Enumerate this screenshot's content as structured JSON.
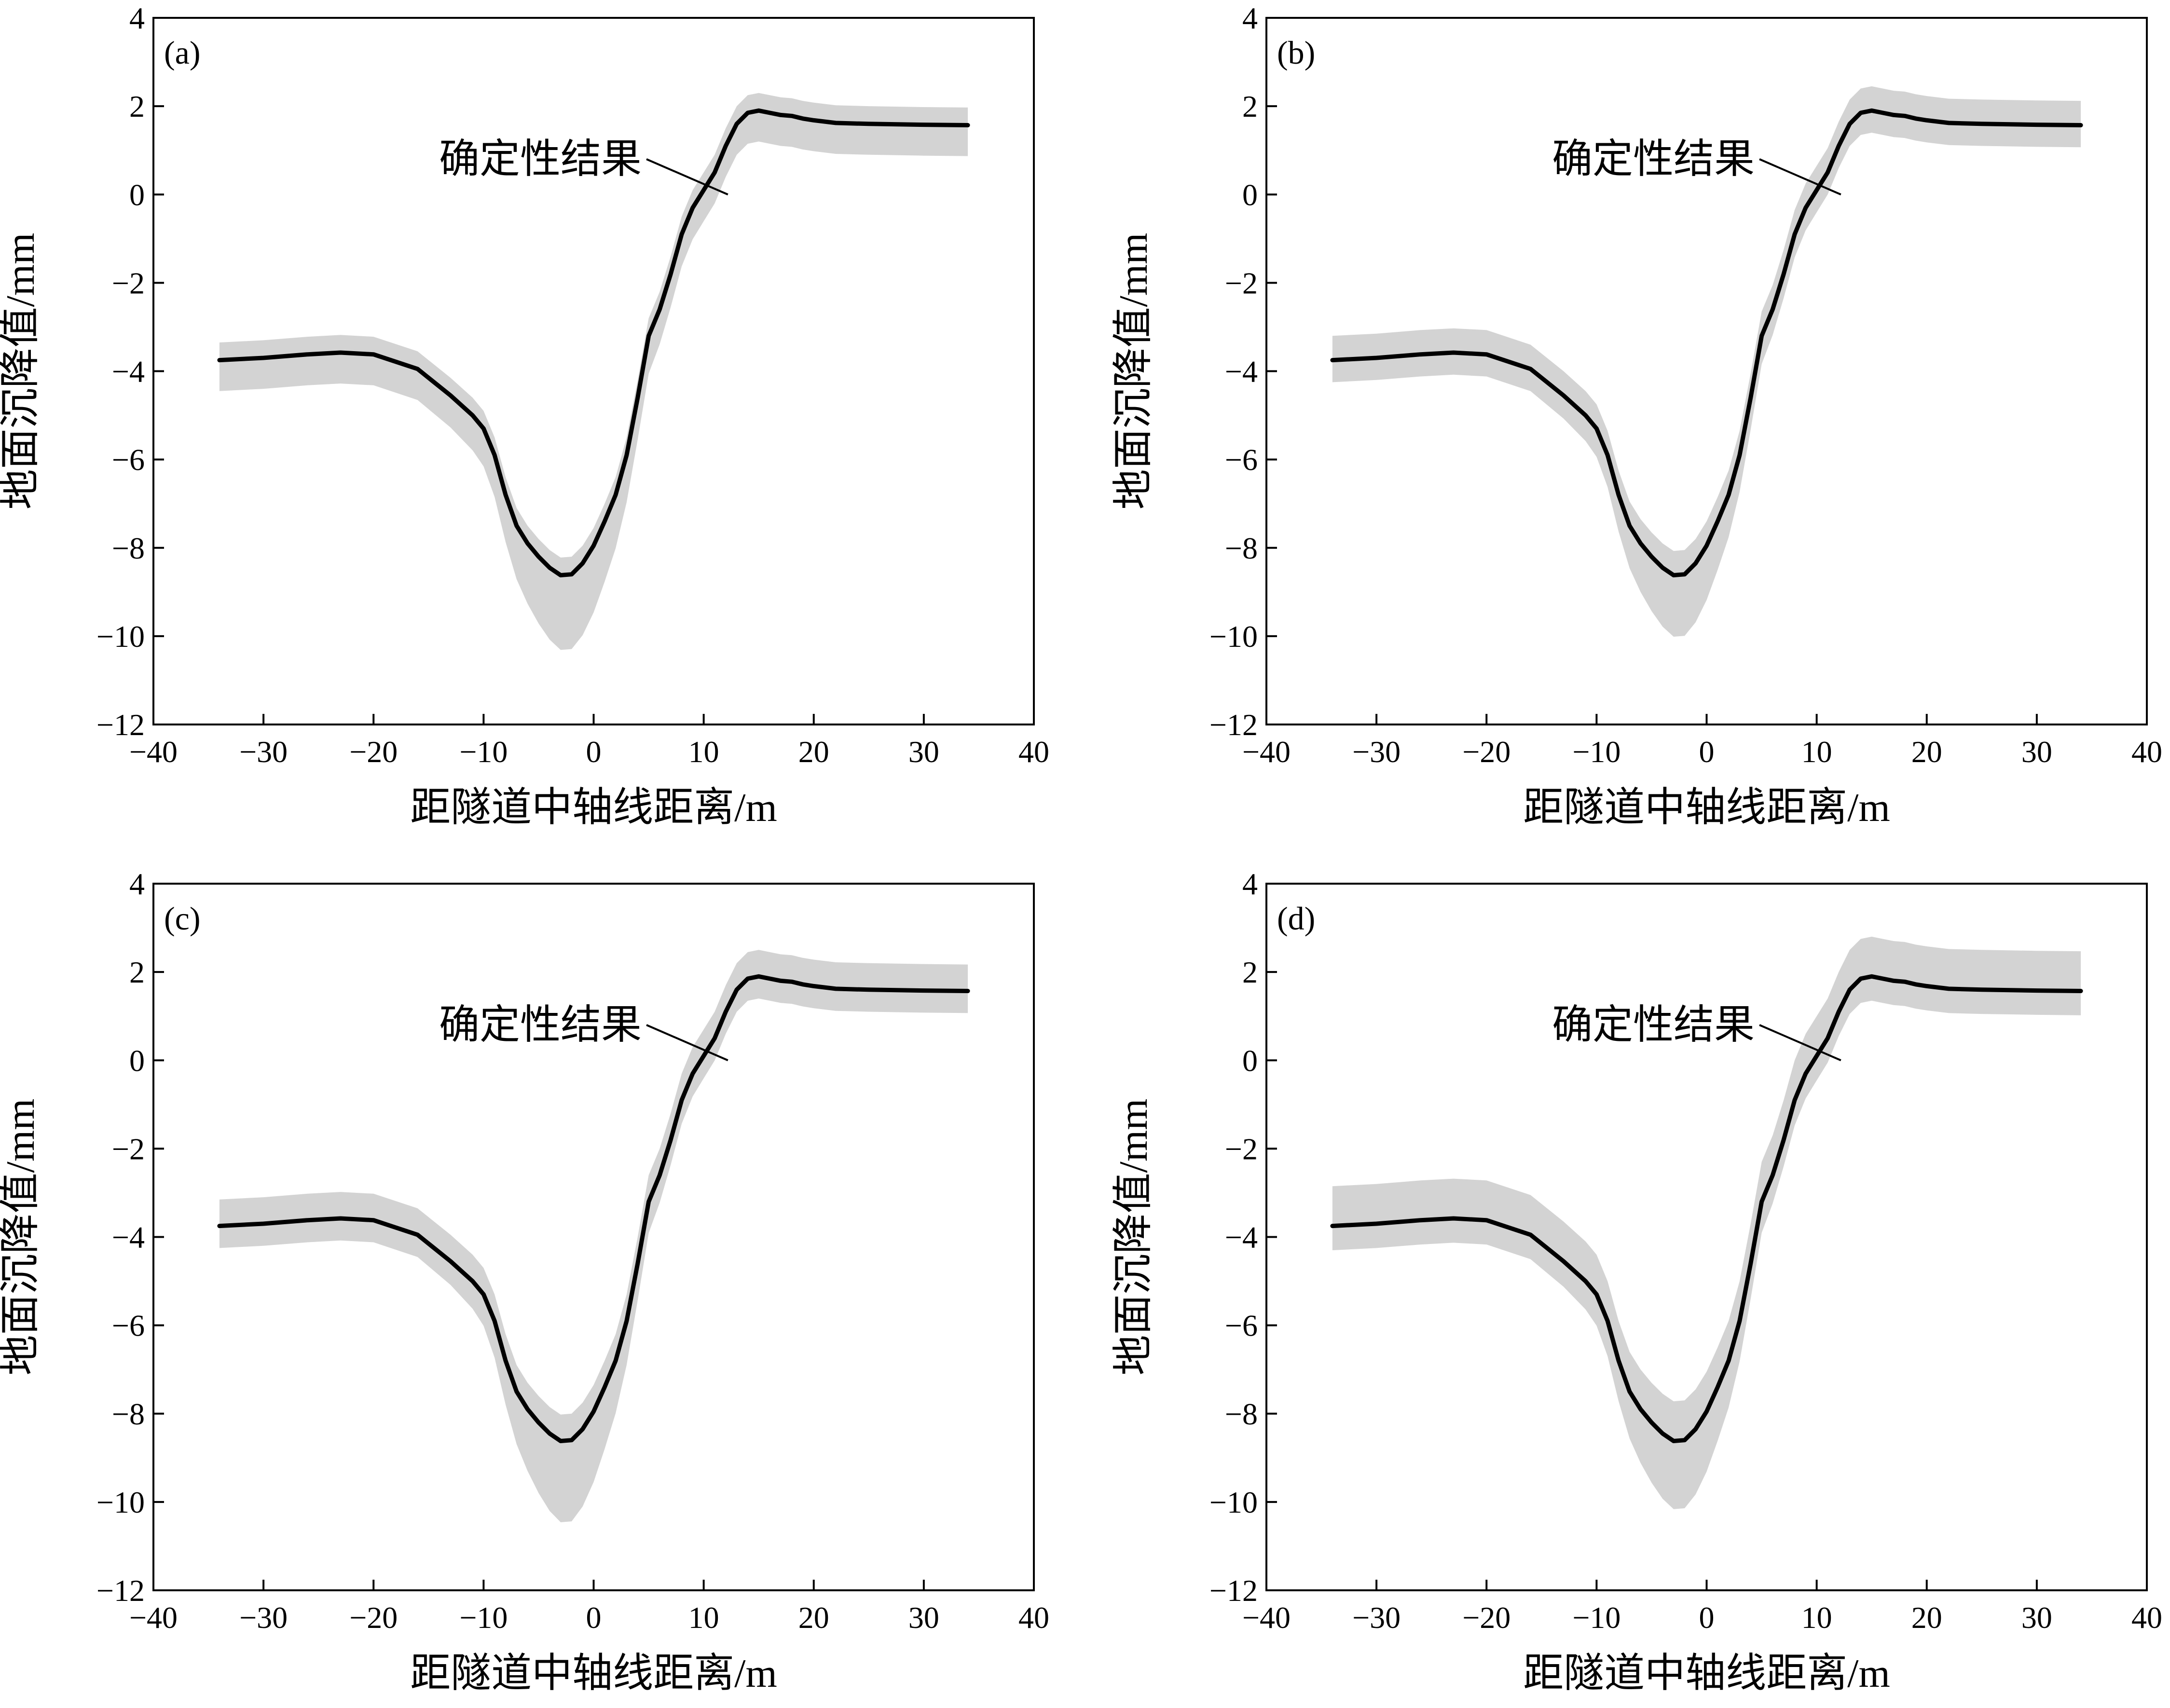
{
  "chart_data": [
    {
      "type": "line",
      "panel_label": "(a)",
      "xlabel": "距隧道中轴线距离/m",
      "ylabel": "地面沉降值/mm",
      "xlim": [
        -40,
        40
      ],
      "ylim": [
        -12,
        4
      ],
      "xticks": [
        -40,
        -30,
        -20,
        -10,
        0,
        10,
        20,
        30,
        40
      ],
      "yticks": [
        -12,
        -10,
        -8,
        -6,
        -4,
        -2,
        0,
        2,
        4
      ],
      "x": [
        -34,
        -30,
        -26,
        -23,
        -20,
        -16,
        -13,
        -11,
        -10,
        -9,
        -8,
        -7,
        -6,
        -5,
        -4,
        -3,
        -2,
        -1,
        0,
        1,
        2,
        3,
        4,
        5,
        6,
        7,
        8,
        9,
        10,
        11,
        12,
        13,
        14,
        15,
        16,
        17,
        18,
        19,
        20,
        22,
        25,
        30,
        34
      ],
      "annotation": {
        "text": "确定性结果",
        "x": 12.2,
        "y": 0,
        "label_x": 4.8,
        "label_y": 0.8
      },
      "series": [
        {
          "name": "确定性结果",
          "color": "#000000",
          "values": [
            -3.75,
            -3.7,
            -3.62,
            -3.58,
            -3.62,
            -3.95,
            -4.55,
            -5.0,
            -5.3,
            -5.9,
            -6.8,
            -7.5,
            -7.9,
            -8.2,
            -8.45,
            -8.62,
            -8.6,
            -8.35,
            -7.95,
            -7.4,
            -6.8,
            -5.9,
            -4.6,
            -3.2,
            -2.6,
            -1.8,
            -0.9,
            -0.3,
            0.1,
            0.5,
            1.1,
            1.6,
            1.85,
            1.9,
            1.85,
            1.8,
            1.78,
            1.72,
            1.68,
            1.62,
            1.6,
            1.58,
            1.57
          ]
        }
      ],
      "band": {
        "color": "#d3d3d3",
        "lower_offset": -0.7,
        "upper_offset": 0.4,
        "min_depth_offset": -1.0
      }
    },
    {
      "type": "line",
      "panel_label": "(b)",
      "xlabel": "距隧道中轴线距离/m",
      "ylabel": "地面沉降值/mm",
      "xlim": [
        -40,
        40
      ],
      "ylim": [
        -12,
        4
      ],
      "xticks": [
        -40,
        -30,
        -20,
        -10,
        0,
        10,
        20,
        30,
        40
      ],
      "yticks": [
        -12,
        -10,
        -8,
        -6,
        -4,
        -2,
        0,
        2,
        4
      ],
      "x": [
        -34,
        -30,
        -26,
        -23,
        -20,
        -16,
        -13,
        -11,
        -10,
        -9,
        -8,
        -7,
        -6,
        -5,
        -4,
        -3,
        -2,
        -1,
        0,
        1,
        2,
        3,
        4,
        5,
        6,
        7,
        8,
        9,
        10,
        11,
        12,
        13,
        14,
        15,
        16,
        17,
        18,
        19,
        20,
        22,
        25,
        30,
        34
      ],
      "annotation": {
        "text": "确定性结果",
        "x": 12.2,
        "y": 0,
        "label_x": 4.8,
        "label_y": 0.8
      },
      "series": [
        {
          "name": "确定性结果",
          "color": "#000000",
          "values": [
            -3.75,
            -3.7,
            -3.62,
            -3.58,
            -3.62,
            -3.95,
            -4.55,
            -5.0,
            -5.3,
            -5.9,
            -6.8,
            -7.5,
            -7.9,
            -8.2,
            -8.45,
            -8.62,
            -8.6,
            -8.35,
            -7.95,
            -7.4,
            -6.8,
            -5.9,
            -4.6,
            -3.2,
            -2.6,
            -1.8,
            -0.9,
            -0.3,
            0.1,
            0.5,
            1.1,
            1.6,
            1.85,
            1.9,
            1.85,
            1.8,
            1.78,
            1.72,
            1.68,
            1.62,
            1.6,
            1.58,
            1.57
          ]
        }
      ],
      "band": {
        "color": "#d3d3d3",
        "lower_offset": -0.5,
        "upper_offset": 0.55,
        "min_depth_offset": -0.9
      }
    },
    {
      "type": "line",
      "panel_label": "(c)",
      "xlabel": "距隧道中轴线距离/m",
      "ylabel": "地面沉降值/mm",
      "xlim": [
        -40,
        40
      ],
      "ylim": [
        -12,
        4
      ],
      "xticks": [
        -40,
        -30,
        -20,
        -10,
        0,
        10,
        20,
        30,
        40
      ],
      "yticks": [
        -12,
        -10,
        -8,
        -6,
        -4,
        -2,
        0,
        2,
        4
      ],
      "x": [
        -34,
        -30,
        -26,
        -23,
        -20,
        -16,
        -13,
        -11,
        -10,
        -9,
        -8,
        -7,
        -6,
        -5,
        -4,
        -3,
        -2,
        -1,
        0,
        1,
        2,
        3,
        4,
        5,
        6,
        7,
        8,
        9,
        10,
        11,
        12,
        13,
        14,
        15,
        16,
        17,
        18,
        19,
        20,
        22,
        25,
        30,
        34
      ],
      "annotation": {
        "text": "确定性结果",
        "x": 12.2,
        "y": 0,
        "label_x": 4.8,
        "label_y": 0.8
      },
      "series": [
        {
          "name": "确定性结果",
          "color": "#000000",
          "values": [
            -3.75,
            -3.7,
            -3.62,
            -3.58,
            -3.62,
            -3.95,
            -4.55,
            -5.0,
            -5.3,
            -5.9,
            -6.8,
            -7.5,
            -7.9,
            -8.2,
            -8.45,
            -8.62,
            -8.6,
            -8.35,
            -7.95,
            -7.4,
            -6.8,
            -5.9,
            -4.6,
            -3.2,
            -2.6,
            -1.8,
            -0.9,
            -0.3,
            0.1,
            0.5,
            1.1,
            1.6,
            1.85,
            1.9,
            1.85,
            1.8,
            1.78,
            1.72,
            1.68,
            1.62,
            1.6,
            1.58,
            1.57
          ]
        }
      ],
      "band": {
        "color": "#d3d3d3",
        "lower_offset": -0.5,
        "upper_offset": 0.6,
        "min_depth_offset": -1.35
      }
    },
    {
      "type": "line",
      "panel_label": "(d)",
      "xlabel": "距隧道中轴线距离/m",
      "ylabel": "地面沉降值/mm",
      "xlim": [
        -40,
        40
      ],
      "ylim": [
        -12,
        4
      ],
      "xticks": [
        -40,
        -30,
        -20,
        -10,
        0,
        10,
        20,
        30,
        40
      ],
      "yticks": [
        -12,
        -10,
        -8,
        -6,
        -4,
        -2,
        0,
        2,
        4
      ],
      "x": [
        -34,
        -30,
        -26,
        -23,
        -20,
        -16,
        -13,
        -11,
        -10,
        -9,
        -8,
        -7,
        -6,
        -5,
        -4,
        -3,
        -2,
        -1,
        0,
        1,
        2,
        3,
        4,
        5,
        6,
        7,
        8,
        9,
        10,
        11,
        12,
        13,
        14,
        15,
        16,
        17,
        18,
        19,
        20,
        22,
        25,
        30,
        34
      ],
      "annotation": {
        "text": "确定性结果",
        "x": 12.2,
        "y": 0,
        "label_x": 4.8,
        "label_y": 0.8
      },
      "series": [
        {
          "name": "确定性结果",
          "color": "#000000",
          "values": [
            -3.75,
            -3.7,
            -3.62,
            -3.58,
            -3.62,
            -3.95,
            -4.55,
            -5.0,
            -5.3,
            -5.9,
            -6.8,
            -7.5,
            -7.9,
            -8.2,
            -8.45,
            -8.62,
            -8.6,
            -8.35,
            -7.95,
            -7.4,
            -6.8,
            -5.9,
            -4.6,
            -3.2,
            -2.6,
            -1.8,
            -0.9,
            -0.3,
            0.1,
            0.5,
            1.1,
            1.6,
            1.85,
            1.9,
            1.85,
            1.8,
            1.78,
            1.72,
            1.68,
            1.62,
            1.6,
            1.58,
            1.57
          ]
        }
      ],
      "band": {
        "color": "#d3d3d3",
        "lower_offset": -0.55,
        "upper_offset": 0.9,
        "min_depth_offset": -1.0
      }
    }
  ]
}
